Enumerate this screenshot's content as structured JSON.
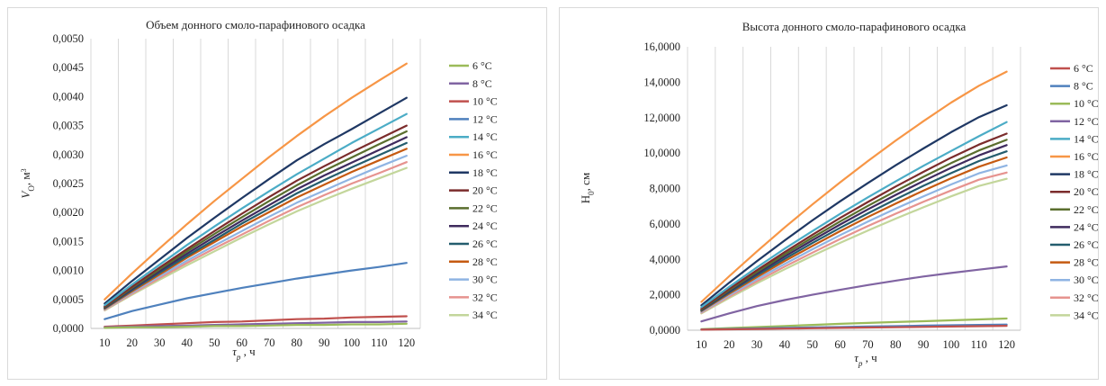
{
  "chart_data": [
    {
      "type": "line",
      "title": "Объем донного смоло-парафинового осадка",
      "ylabel": "V_O, м³",
      "ylabel_parts": {
        "main": "V",
        "sub": "O",
        "unit": ", м",
        "sup": "3"
      },
      "xlabel": "τ_p , ч",
      "xlabel_parts": {
        "main": "τ",
        "sub": "p",
        "unit": " , ч"
      },
      "x": [
        10,
        20,
        30,
        40,
        50,
        60,
        70,
        80,
        90,
        100,
        110,
        120
      ],
      "x_ticks": [
        "10",
        "20",
        "30",
        "40",
        "50",
        "60",
        "70",
        "80",
        "90",
        "100",
        "110",
        "120"
      ],
      "ylim": [
        0,
        0.005
      ],
      "y_ticks": [
        "0,0000",
        "0,0005",
        "0,0010",
        "0,0015",
        "0,0020",
        "0,0025",
        "0,0030",
        "0,0035",
        "0,0040",
        "0,0045",
        "0,0050"
      ],
      "grid": "vertical",
      "legend_position": "right",
      "series": [
        {
          "name": "6 °C",
          "color": "#9bbb59",
          "values": [
            1e-05,
            2e-05,
            2e-05,
            3e-05,
            4e-05,
            4e-05,
            5e-05,
            6e-05,
            6e-05,
            7e-05,
            7e-05,
            8e-05
          ]
        },
        {
          "name": "8 °C",
          "color": "#8064a2",
          "values": [
            2e-05,
            3e-05,
            4e-05,
            5e-05,
            6e-05,
            7e-05,
            8e-05,
            9e-05,
            0.0001,
            0.00011,
            0.00011,
            0.00012
          ]
        },
        {
          "name": "10 °C",
          "color": "#c0504d",
          "values": [
            3e-05,
            5e-05,
            7e-05,
            9e-05,
            0.00011,
            0.00012,
            0.00014,
            0.00016,
            0.00017,
            0.00019,
            0.0002,
            0.00021
          ]
        },
        {
          "name": "12 °C",
          "color": "#4f81bd",
          "values": [
            0.00016,
            0.0003,
            0.00041,
            0.00052,
            0.00061,
            0.0007,
            0.00078,
            0.00086,
            0.00093,
            0.001,
            0.00106,
            0.00113
          ]
        },
        {
          "name": "14 °C",
          "color": "#4bacc6",
          "values": [
            0.0004,
            0.00076,
            0.0011,
            0.00144,
            0.00176,
            0.00207,
            0.00237,
            0.00266,
            0.00293,
            0.0032,
            0.00345,
            0.0037
          ]
        },
        {
          "name": "16 °C",
          "color": "#f79646",
          "values": [
            0.0005,
            0.00095,
            0.00138,
            0.0018,
            0.0022,
            0.00258,
            0.00296,
            0.00332,
            0.00366,
            0.00398,
            0.00428,
            0.00457
          ]
        },
        {
          "name": "18 °C",
          "color": "#1f3864",
          "values": [
            0.00043,
            0.00082,
            0.00119,
            0.00156,
            0.00191,
            0.00225,
            0.00258,
            0.0029,
            0.00318,
            0.00344,
            0.00371,
            0.00398
          ]
        },
        {
          "name": "20 °C",
          "color": "#7b2c2c",
          "values": [
            0.00038,
            0.00072,
            0.00105,
            0.00137,
            0.00168,
            0.00198,
            0.00227,
            0.00255,
            0.0028,
            0.00304,
            0.00327,
            0.0035
          ]
        },
        {
          "name": "22 °C",
          "color": "#5a6e2e",
          "values": [
            0.00037,
            0.0007,
            0.00102,
            0.00133,
            0.00163,
            0.00192,
            0.0022,
            0.00247,
            0.00272,
            0.00295,
            0.00318,
            0.0034
          ]
        },
        {
          "name": "24 °C",
          "color": "#3f2b5e",
          "values": [
            0.00036,
            0.00068,
            0.00099,
            0.00129,
            0.00158,
            0.00186,
            0.00213,
            0.0024,
            0.00264,
            0.00286,
            0.00308,
            0.0033
          ]
        },
        {
          "name": "26 °C",
          "color": "#245d6e",
          "values": [
            0.00035,
            0.00066,
            0.00096,
            0.00125,
            0.00153,
            0.00181,
            0.00207,
            0.00233,
            0.00256,
            0.00278,
            0.00299,
            0.0032
          ]
        },
        {
          "name": "28 °C",
          "color": "#c55a11",
          "values": [
            0.00034,
            0.00064,
            0.00093,
            0.00122,
            0.00149,
            0.00176,
            0.00201,
            0.00226,
            0.00248,
            0.0027,
            0.0029,
            0.0031
          ]
        },
        {
          "name": "30 °C",
          "color": "#8fb4e3",
          "values": [
            0.00033,
            0.00062,
            0.0009,
            0.00117,
            0.00143,
            0.00168,
            0.00193,
            0.00217,
            0.00238,
            0.00259,
            0.00279,
            0.00298
          ]
        },
        {
          "name": "32 °C",
          "color": "#e6938f",
          "values": [
            0.00032,
            0.0006,
            0.00087,
            0.00113,
            0.00138,
            0.00162,
            0.00186,
            0.00209,
            0.0023,
            0.0025,
            0.00268,
            0.00287
          ]
        },
        {
          "name": "34 °C",
          "color": "#c3d69b",
          "values": [
            0.00031,
            0.00058,
            0.00084,
            0.00109,
            0.00133,
            0.00157,
            0.0018,
            0.00202,
            0.00222,
            0.00241,
            0.00259,
            0.00277
          ]
        }
      ]
    },
    {
      "type": "line",
      "title": "Высота донного смоло-парафинового осадка",
      "ylabel": "H₀, см",
      "ylabel_parts": {
        "main": "H",
        "sub": "0",
        "unit": ", см",
        "sup": ""
      },
      "xlabel": "τp , ч",
      "xlabel_parts": {
        "main": "τ",
        "sub": "p",
        "unit": " , ч"
      },
      "x": [
        10,
        20,
        30,
        40,
        50,
        60,
        70,
        80,
        90,
        100,
        110,
        120
      ],
      "x_ticks": [
        "10",
        "20",
        "30",
        "40",
        "50",
        "60",
        "70",
        "80",
        "90",
        "100",
        "110",
        "120"
      ],
      "ylim": [
        0,
        16
      ],
      "y_ticks": [
        "0,0000",
        "2,0000",
        "4,0000",
        "6,0000",
        "8,0000",
        "10,0000",
        "12,0000",
        "14,0000",
        "16,0000"
      ],
      "grid": "vertical",
      "legend_position": "right",
      "series": [
        {
          "name": "6 °C",
          "color": "#c0504d",
          "values": [
            0.03,
            0.05,
            0.07,
            0.09,
            0.11,
            0.13,
            0.15,
            0.17,
            0.19,
            0.21,
            0.23,
            0.25
          ]
        },
        {
          "name": "8 °C",
          "color": "#4f81bd",
          "values": [
            0.04,
            0.07,
            0.1,
            0.13,
            0.16,
            0.18,
            0.21,
            0.23,
            0.26,
            0.28,
            0.3,
            0.32
          ]
        },
        {
          "name": "10 °C",
          "color": "#9bbb59",
          "values": [
            0.06,
            0.12,
            0.18,
            0.24,
            0.3,
            0.36,
            0.41,
            0.46,
            0.51,
            0.56,
            0.61,
            0.66
          ]
        },
        {
          "name": "12 °C",
          "color": "#8064a2",
          "values": [
            0.5,
            0.95,
            1.36,
            1.7,
            2.0,
            2.28,
            2.55,
            2.8,
            3.03,
            3.23,
            3.42,
            3.6
          ]
        },
        {
          "name": "14 °C",
          "color": "#4bacc6",
          "values": [
            1.3,
            2.45,
            3.55,
            4.6,
            5.6,
            6.57,
            7.5,
            8.4,
            9.28,
            10.12,
            10.95,
            11.75
          ]
        },
        {
          "name": "16 °C",
          "color": "#f79646",
          "values": [
            1.6,
            3.05,
            4.45,
            5.8,
            7.1,
            8.35,
            9.55,
            10.7,
            11.8,
            12.85,
            13.8,
            14.6
          ]
        },
        {
          "name": "18 °C",
          "color": "#1f3864",
          "values": [
            1.4,
            2.68,
            3.9,
            5.07,
            6.2,
            7.28,
            8.31,
            9.31,
            10.26,
            11.18,
            12.03,
            12.7
          ]
        },
        {
          "name": "20 °C",
          "color": "#7b2c2c",
          "values": [
            1.22,
            2.33,
            3.39,
            4.41,
            5.39,
            6.34,
            7.24,
            8.11,
            8.94,
            9.74,
            10.48,
            11.1
          ]
        },
        {
          "name": "22 °C",
          "color": "#5a6e2e",
          "values": [
            1.18,
            2.26,
            3.29,
            4.28,
            5.23,
            6.14,
            7.02,
            7.86,
            8.66,
            9.43,
            10.15,
            10.75
          ]
        },
        {
          "name": "24 °C",
          "color": "#3f2b5e",
          "values": [
            1.15,
            2.2,
            3.2,
            4.16,
            5.08,
            5.97,
            6.82,
            7.64,
            8.42,
            9.17,
            9.87,
            10.45
          ]
        },
        {
          "name": "26 °C",
          "color": "#245d6e",
          "values": [
            1.11,
            2.13,
            3.1,
            4.03,
            4.92,
            5.78,
            6.6,
            7.39,
            8.15,
            8.87,
            9.55,
            10.1
          ]
        },
        {
          "name": "28 °C",
          "color": "#c55a11",
          "values": [
            1.08,
            2.06,
            3.0,
            3.9,
            4.76,
            5.59,
            6.39,
            7.15,
            7.88,
            8.58,
            9.23,
            9.75
          ]
        },
        {
          "name": "30 °C",
          "color": "#8fb4e3",
          "values": [
            1.03,
            1.98,
            2.88,
            3.74,
            4.57,
            5.37,
            6.13,
            6.86,
            7.56,
            8.23,
            8.86,
            9.3
          ]
        },
        {
          "name": "32 °C",
          "color": "#e6938f",
          "values": [
            0.99,
            1.9,
            2.76,
            3.59,
            4.38,
            5.15,
            5.88,
            6.58,
            7.25,
            7.89,
            8.5,
            8.9
          ]
        },
        {
          "name": "34 °C",
          "color": "#c3d69b",
          "values": [
            0.95,
            1.82,
            2.65,
            3.44,
            4.2,
            4.93,
            5.63,
            6.3,
            6.94,
            7.56,
            8.14,
            8.55
          ]
        }
      ]
    }
  ]
}
